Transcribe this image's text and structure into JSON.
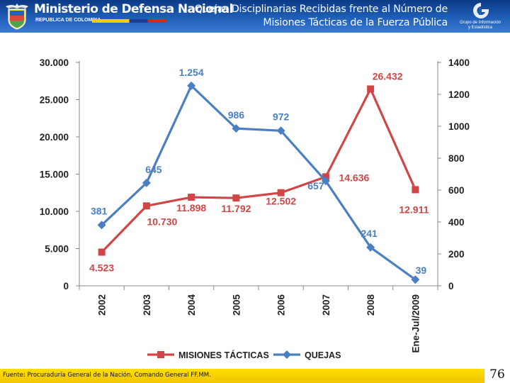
{
  "header": {
    "ministry_name": "Ministerio de Defensa Nacional",
    "republic_label": "REPUBLICA DE COLOMBIA",
    "title_line1": "Quejas Disciplinarias Recibidas frente al Número de",
    "title_line2": "Misiones Tácticas de la Fuerza Pública",
    "group_label_line1": "Grupo de Información",
    "group_label_line2": "y Estadística",
    "crest_icon": "colombia-coat-of-arms-icon",
    "group_icon": "gie-logo-icon"
  },
  "chart_data": {
    "type": "line",
    "categories": [
      "2002",
      "2003",
      "2004",
      "2005",
      "2006",
      "2007",
      "2008",
      "Ene-Jul/2009"
    ],
    "series": [
      {
        "name": "MISIONES TÁCTICAS",
        "axis": "left",
        "color": "#d04545",
        "marker": "square",
        "values": [
          4523,
          10730,
          11898,
          11792,
          12502,
          14636,
          26432,
          12911
        ],
        "labels": [
          "4.523",
          "10.730",
          "11.898",
          "11.792",
          "12.502",
          "14.636",
          "26.432",
          "12.911"
        ]
      },
      {
        "name": "QUEJAS",
        "axis": "right",
        "color": "#4a7fc1",
        "marker": "diamond",
        "values": [
          381,
          645,
          1254,
          986,
          972,
          657,
          241,
          39
        ],
        "labels": [
          "381",
          "645",
          "1.254",
          "986",
          "972",
          "657",
          "241",
          "39"
        ]
      }
    ],
    "y_left": {
      "min": 0,
      "max": 30000,
      "ticks": [
        0,
        5000,
        10000,
        15000,
        20000,
        25000,
        30000
      ],
      "tick_labels": [
        "0",
        "5.000",
        "10.000",
        "15.000",
        "20.000",
        "25.000",
        "30.000"
      ]
    },
    "y_right": {
      "min": 0,
      "max": 1400,
      "ticks": [
        0,
        200,
        400,
        600,
        800,
        1000,
        1200,
        1400
      ],
      "tick_labels": [
        "0",
        "200",
        "400",
        "600",
        "800",
        "1000",
        "1200",
        "1400"
      ]
    },
    "grid": false,
    "legend_position": "bottom"
  },
  "footer": {
    "source": "Fuente: Procuraduría General de la Nación, Comando General FF.MM.",
    "page_number": "76"
  },
  "colors": {
    "header_blue": "#1f5fb8",
    "footer_yellow": "#f1c400",
    "axis_text": "#222222"
  }
}
